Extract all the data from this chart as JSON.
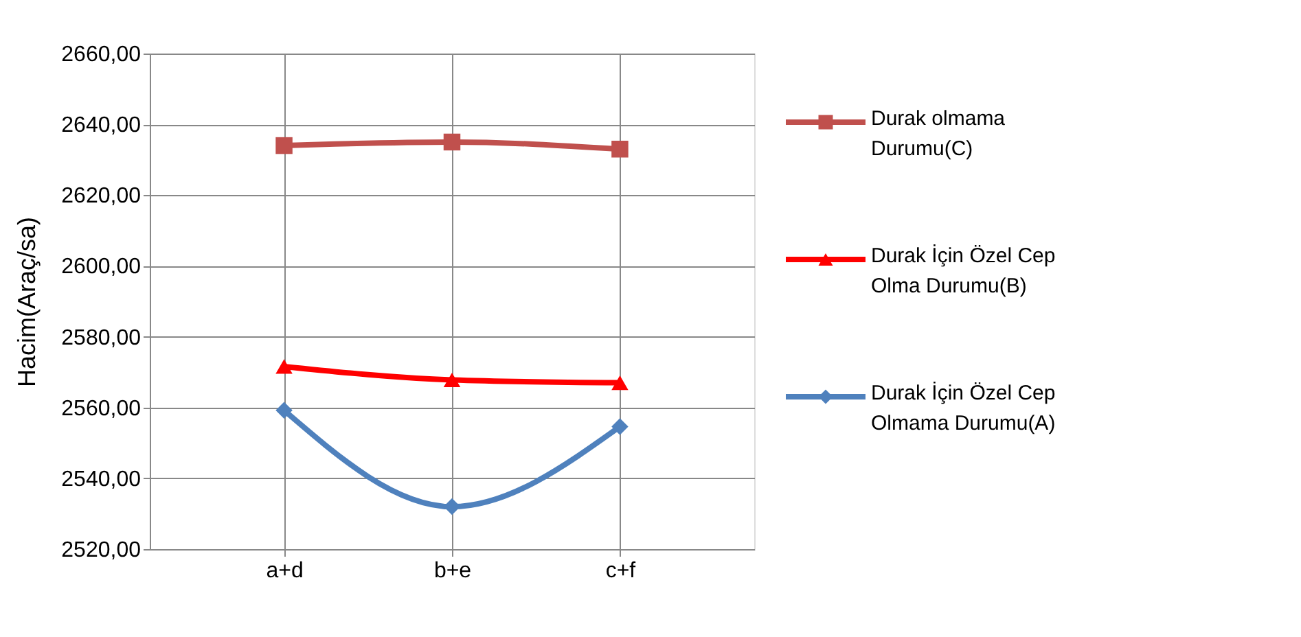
{
  "chart_data": {
    "type": "line",
    "ylabel": "Hacim(Araç/sa)",
    "categories": [
      "a+d",
      "b+e",
      "c+f"
    ],
    "series": [
      {
        "name": "Durak olmama Durumu(C)",
        "color": "#c0504d",
        "marker": "square",
        "values": [
          2634,
          2635,
          2633
        ]
      },
      {
        "name": "Durak İçin Özel Cep Olma Durumu(B)",
        "color": "#ff0000",
        "marker": "triangle",
        "values": [
          2571.6,
          2567.8,
          2567
        ]
      },
      {
        "name": "Durak İçin Özel Cep Olmama Durumu(A)",
        "color": "#4f81bd",
        "marker": "diamond",
        "values": [
          2559.2,
          2532,
          2554.6
        ]
      }
    ],
    "ylim": [
      2520,
      2660
    ],
    "yticks": [
      {
        "value": 2520,
        "label": "2520,00"
      },
      {
        "value": 2540,
        "label": "2540,00"
      },
      {
        "value": 2560,
        "label": "2560,00"
      },
      {
        "value": 2580,
        "label": "2580,00"
      },
      {
        "value": 2600,
        "label": "2600,00"
      },
      {
        "value": 2620,
        "label": "2620,00"
      },
      {
        "value": 2640,
        "label": "2640,00"
      },
      {
        "value": 2660,
        "label": "2660,00"
      }
    ],
    "grid": true,
    "legend": "right"
  }
}
